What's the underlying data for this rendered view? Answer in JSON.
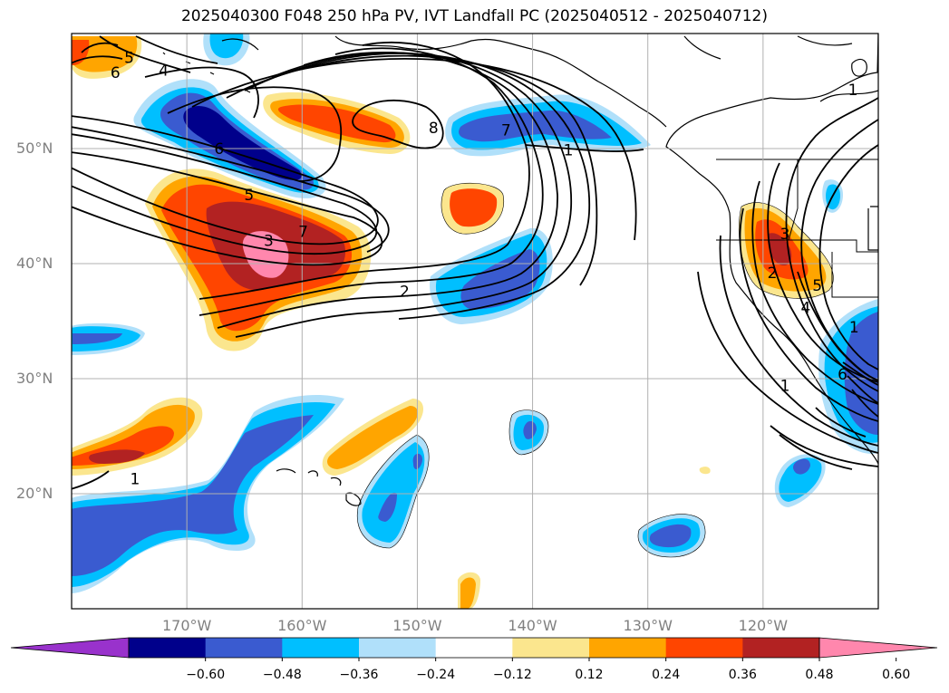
{
  "title": "2025040300 F048 250 hPa PV, IVT Landfall PC (2025040512 - 2025040712)",
  "map": {
    "projection": "equirectangular",
    "lon_range": [
      -180,
      -110
    ],
    "lat_range": [
      10,
      60
    ],
    "gridlines": true,
    "lat_ticks": [
      {
        "value": 20,
        "label": "20°N"
      },
      {
        "value": 30,
        "label": "30°N"
      },
      {
        "value": 40,
        "label": "40°N"
      },
      {
        "value": 50,
        "label": "50°N"
      }
    ],
    "lon_ticks": [
      {
        "value": -170,
        "label": "170°W"
      },
      {
        "value": -160,
        "label": "160°W"
      },
      {
        "value": -150,
        "label": "150°W"
      },
      {
        "value": -140,
        "label": "140°W"
      },
      {
        "value": -130,
        "label": "130°W"
      },
      {
        "value": -120,
        "label": "120°W"
      }
    ],
    "contour_labels": [
      {
        "text": "5",
        "lon": -175,
        "lat": 57.9
      },
      {
        "text": "6",
        "lon": -176.2,
        "lat": 56.6
      },
      {
        "text": "4",
        "lon": -172,
        "lat": 56.8
      },
      {
        "text": "6",
        "lon": -167.2,
        "lat": 50
      },
      {
        "text": "5",
        "lon": -164.6,
        "lat": 46
      },
      {
        "text": "7",
        "lon": -159.9,
        "lat": 42.8
      },
      {
        "text": "3",
        "lon": -162.9,
        "lat": 42
      },
      {
        "text": "2",
        "lon": -151.1,
        "lat": 37.6
      },
      {
        "text": "8",
        "lon": -148.6,
        "lat": 51.8
      },
      {
        "text": "7",
        "lon": -142.3,
        "lat": 51.6
      },
      {
        "text": "1",
        "lon": -136.9,
        "lat": 49.9
      },
      {
        "text": "1",
        "lon": -112.2,
        "lat": 55.1
      },
      {
        "text": "3",
        "lon": -118.1,
        "lat": 42.6
      },
      {
        "text": "2",
        "lon": -119.2,
        "lat": 39.2
      },
      {
        "text": "5",
        "lon": -115.3,
        "lat": 38.1
      },
      {
        "text": "4",
        "lon": -116.3,
        "lat": 36.2
      },
      {
        "text": "1",
        "lon": -112.1,
        "lat": 34.5
      },
      {
        "text": "6",
        "lon": -113.1,
        "lat": 30.4
      },
      {
        "text": "1",
        "lon": -118.1,
        "lat": 29.4
      },
      {
        "text": "1",
        "lon": -174.5,
        "lat": 21.3
      }
    ]
  },
  "colorbar": {
    "extend": "both",
    "colors": [
      "#9932cc",
      "#00008b",
      "#3a5bd0",
      "#00bfff",
      "#b0e0fa",
      "#ffffff",
      "#fbe68e",
      "#ffa500",
      "#ff4500",
      "#b22222",
      "#ff87ad"
    ],
    "ticks": [
      "−0.60",
      "−0.48",
      "−0.36",
      "−0.24",
      "−0.12",
      "0.12",
      "0.24",
      "0.36",
      "0.48",
      "0.60"
    ]
  },
  "colors": {
    "grid": "#b0b0b0",
    "tick_label": "#808080",
    "contour": "#000000"
  }
}
